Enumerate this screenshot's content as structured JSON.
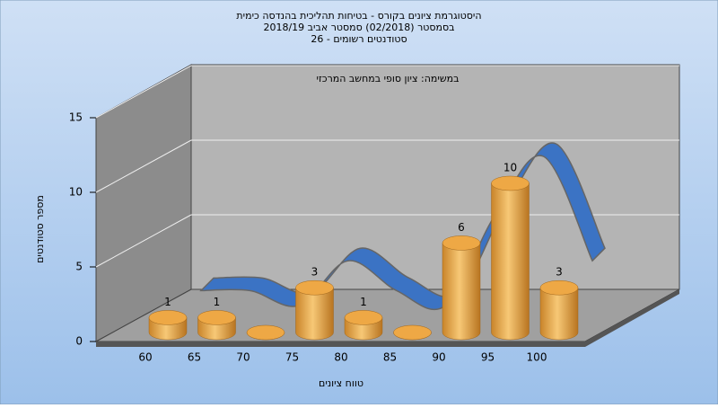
{
  "chart_data": {
    "type": "bar",
    "title_lines": [
      "היסטוגרמת ציונים בקורס - בטיחות תהליכית בהנדסה כימית",
      "בסמסטר  (02/2018)  סמסטר אביב 2018/19",
      "סטודנטים רשומים - 26"
    ],
    "annotation": "במשימה: ציון סופי במחשב המרכזי",
    "ylabel": "מספר סטודנטים",
    "xlabel": "טווח ציונים",
    "categories": [
      "60",
      "65",
      "70",
      "75",
      "80",
      "85",
      "90",
      "95",
      "100"
    ],
    "values": [
      1,
      1,
      0,
      3,
      1,
      0,
      6,
      10,
      3
    ],
    "color": "#e8a53a",
    "ribbon_color": "#3b73c4",
    "ylim": [
      0,
      15
    ],
    "yticks": [
      0,
      5,
      10,
      15
    ],
    "grid": true
  }
}
